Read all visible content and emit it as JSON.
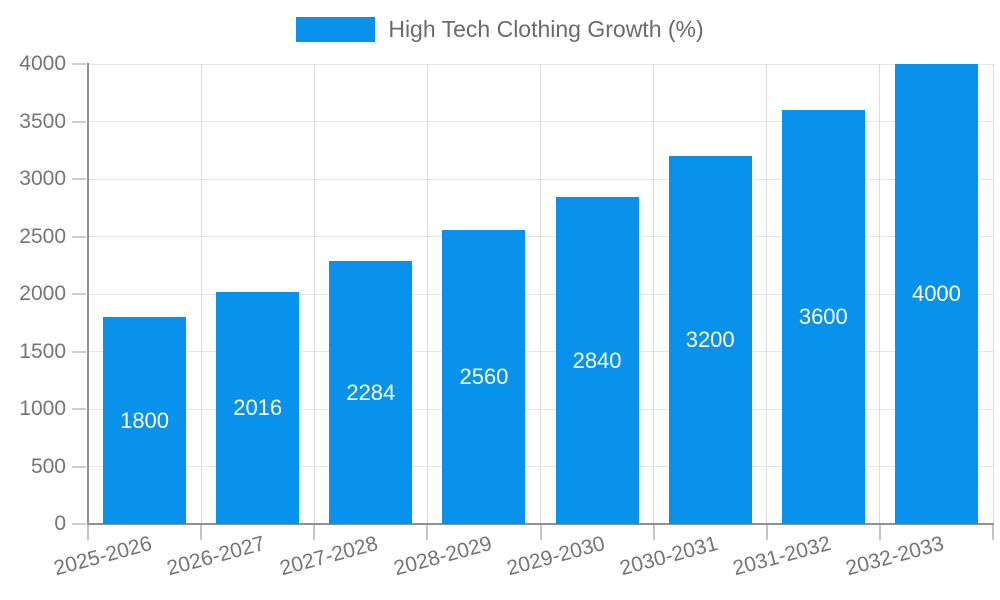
{
  "legend": {
    "label": "High Tech Clothing Growth (%)"
  },
  "chart_data": {
    "type": "bar",
    "title": "High Tech Clothing Growth (%)",
    "categories": [
      "2025-2026",
      "2026-2027",
      "2027-2028",
      "2028-2029",
      "2029-2030",
      "2030-2031",
      "2031-2032",
      "2032-2033"
    ],
    "values": [
      1800,
      2016,
      2284,
      2560,
      2840,
      3200,
      3600,
      4000
    ],
    "value_labels": [
      "1800",
      "2016",
      "2284",
      "2560",
      "2840",
      "3200",
      "3600",
      "4000"
    ],
    "xlabel": "",
    "ylabel": "",
    "ylim": [
      0,
      4000
    ],
    "ytick_step": 500,
    "ytick_labels": [
      "0",
      "500",
      "1000",
      "1500",
      "2000",
      "2500",
      "3000",
      "3500",
      "4000"
    ],
    "grid": true,
    "legend_position": "top-center",
    "x_label_rotation_deg": -15,
    "colors": {
      "bar": "#0992eb",
      "bar_label": "#ffffff",
      "axis_line": "#919191",
      "axis_text": "#757575",
      "legend_text": "#6b6b6b",
      "gridline": "#e6e6e6",
      "background": "#ffffff"
    }
  }
}
